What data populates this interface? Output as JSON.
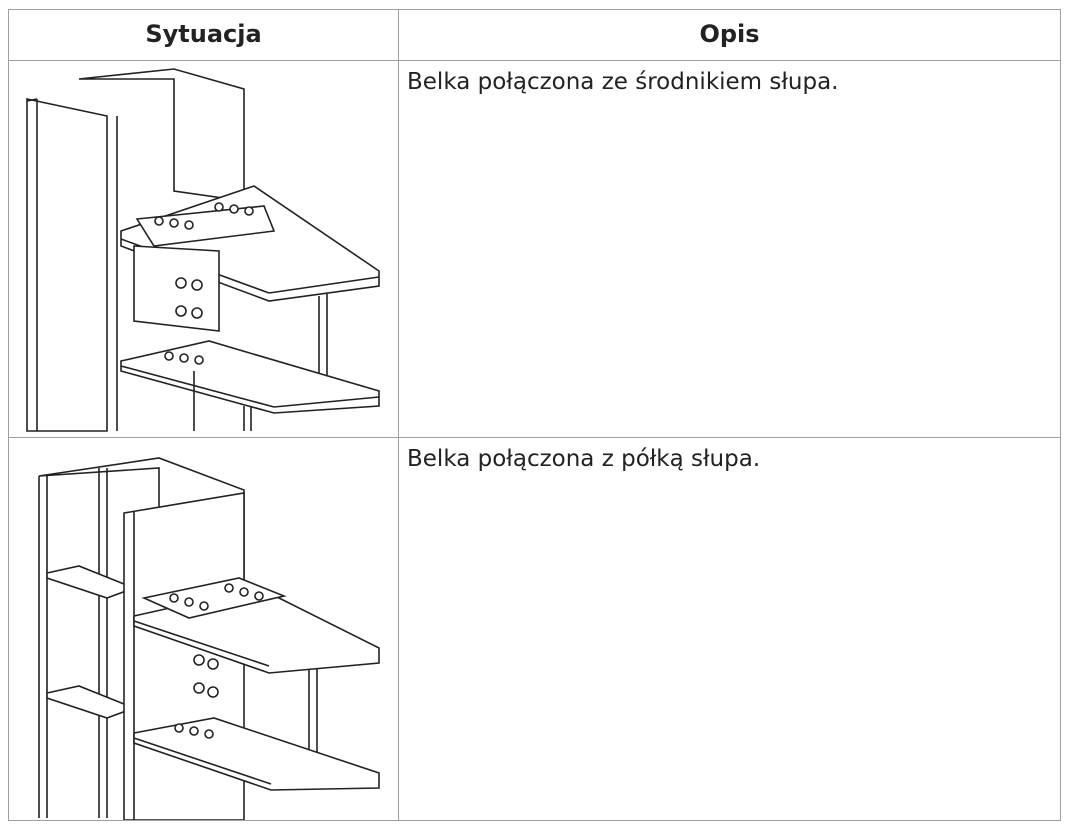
{
  "table": {
    "headers": [
      "Sytuacja",
      "Opis"
    ],
    "rows": [
      {
        "description": "Belka połączona ze środnikiem słupa."
      },
      {
        "description": "Belka połączona z półką słupa."
      }
    ]
  }
}
